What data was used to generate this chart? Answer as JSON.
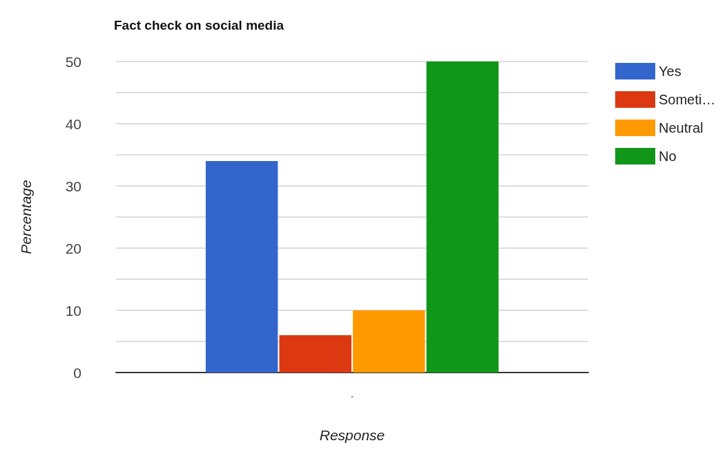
{
  "chart_data": {
    "type": "bar",
    "title": "Fact check on social media",
    "xlabel": "Response",
    "ylabel": "Percentage",
    "categories": [
      "."
    ],
    "series": [
      {
        "name": "Yes",
        "color": "#3366cc",
        "values": [
          34
        ]
      },
      {
        "name": "Someti…",
        "color": "#dc3912",
        "values": [
          6
        ]
      },
      {
        "name": "Neutral",
        "color": "#ff9900",
        "values": [
          10
        ]
      },
      {
        "name": "No",
        "color": "#109618",
        "values": [
          50
        ]
      }
    ],
    "ylim": [
      0,
      50
    ],
    "yticks": [
      0,
      {
        "value": 5,
        "label": null
      },
      10,
      {
        "value": 15,
        "label": null
      },
      20,
      {
        "value": 25,
        "label": null
      },
      30,
      {
        "value": 35,
        "label": null
      },
      40,
      {
        "value": 45,
        "label": null
      },
      50
    ],
    "grid": "y",
    "legend": "top right"
  }
}
